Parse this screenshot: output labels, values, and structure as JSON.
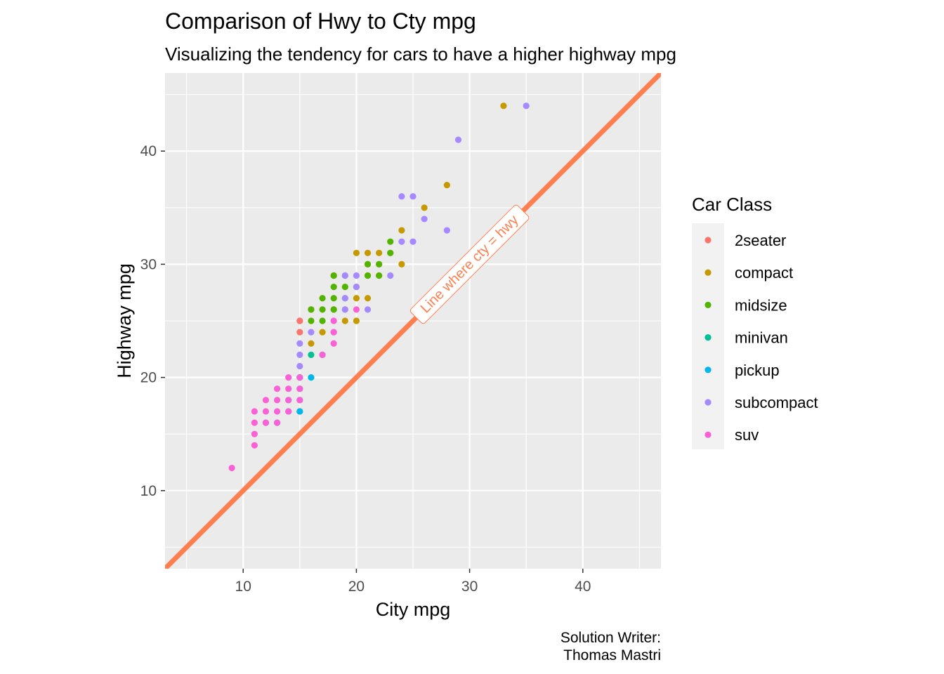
{
  "chart_data": {
    "type": "scatter",
    "title": "Comparison of Hwy to Cty mpg",
    "subtitle": "Visualizing the tendency for cars to have a higher highway mpg",
    "xlabel": "City mpg",
    "ylabel": "Highway mpg",
    "caption_lines": [
      "Solution Writer:",
      "Thomas Mastri"
    ],
    "xlim": [
      3.1,
      46.9
    ],
    "ylim": [
      3.1,
      46.9
    ],
    "x_ticks": [
      10,
      20,
      30,
      40
    ],
    "y_ticks": [
      10,
      20,
      30,
      40
    ],
    "grid": true,
    "legend": {
      "title": "Car Class",
      "position": "right"
    },
    "reference_line": {
      "label": "Line where cty = hwy",
      "slope": 1,
      "intercept": 0,
      "color": "#FF7F50",
      "label_at": [
        30,
        30
      ]
    },
    "series": [
      {
        "name": "2seater",
        "color": "#F8766D",
        "points": [
          [
            15,
            24
          ],
          [
            15,
            25
          ],
          [
            16,
            26
          ],
          [
            15,
            25
          ]
        ]
      },
      {
        "name": "compact",
        "color": "#C49A00",
        "points": [
          [
            18,
            29
          ],
          [
            21,
            29
          ],
          [
            20,
            31
          ],
          [
            21,
            30
          ],
          [
            18,
            26
          ],
          [
            16,
            23
          ],
          [
            17,
            24
          ],
          [
            19,
            25
          ],
          [
            19,
            26
          ],
          [
            20,
            27
          ],
          [
            21,
            27
          ],
          [
            20,
            28
          ],
          [
            21,
            31
          ],
          [
            22,
            31
          ],
          [
            22,
            29
          ],
          [
            23,
            31
          ],
          [
            24,
            30
          ],
          [
            24,
            33
          ],
          [
            26,
            35
          ],
          [
            28,
            37
          ],
          [
            33,
            44
          ],
          [
            20,
            25
          ],
          [
            22,
            30
          ]
        ]
      },
      {
        "name": "midsize",
        "color": "#53B400",
        "points": [
          [
            16,
            26
          ],
          [
            17,
            26
          ],
          [
            18,
            26
          ],
          [
            18,
            28
          ],
          [
            18,
            29
          ],
          [
            19,
            29
          ],
          [
            19,
            28
          ],
          [
            17,
            27
          ],
          [
            17,
            25
          ],
          [
            16,
            25
          ],
          [
            21,
            30
          ],
          [
            21,
            29
          ],
          [
            22,
            30
          ],
          [
            22,
            29
          ],
          [
            23,
            31
          ],
          [
            23,
            32
          ],
          [
            19,
            27
          ],
          [
            18,
            27
          ]
        ]
      },
      {
        "name": "minivan",
        "color": "#00C094",
        "points": [
          [
            16,
            22
          ],
          [
            17,
            22
          ],
          [
            15,
            20
          ]
        ]
      },
      {
        "name": "pickup",
        "color": "#00B6EB",
        "points": [
          [
            15,
            17
          ],
          [
            15,
            18
          ],
          [
            14,
            17
          ],
          [
            14,
            18
          ],
          [
            15,
            19
          ],
          [
            15,
            20
          ],
          [
            16,
            20
          ],
          [
            13,
            16
          ],
          [
            12,
            16
          ],
          [
            15,
            17
          ]
        ]
      },
      {
        "name": "subcompact",
        "color": "#A58AFF",
        "points": [
          [
            15,
            23
          ],
          [
            16,
            24
          ],
          [
            15,
            21
          ],
          [
            15,
            22
          ],
          [
            18,
            24
          ],
          [
            19,
            26
          ],
          [
            19,
            27
          ],
          [
            20,
            28
          ],
          [
            19,
            29
          ],
          [
            20,
            29
          ],
          [
            21,
            26
          ],
          [
            23,
            29
          ],
          [
            24,
            32
          ],
          [
            24,
            36
          ],
          [
            25,
            32
          ],
          [
            25,
            36
          ],
          [
            26,
            34
          ],
          [
            28,
            33
          ],
          [
            29,
            41
          ],
          [
            35,
            44
          ]
        ]
      },
      {
        "name": "suv",
        "color": "#FB61D7",
        "points": [
          [
            9,
            12
          ],
          [
            11,
            14
          ],
          [
            11,
            15
          ],
          [
            11,
            16
          ],
          [
            11,
            17
          ],
          [
            12,
            17
          ],
          [
            12,
            18
          ],
          [
            13,
            17
          ],
          [
            13,
            18
          ],
          [
            13,
            19
          ],
          [
            14,
            19
          ],
          [
            14,
            20
          ],
          [
            14,
            17
          ],
          [
            14,
            18
          ],
          [
            15,
            18
          ],
          [
            15,
            19
          ],
          [
            15,
            20
          ],
          [
            17,
            22
          ],
          [
            18,
            25
          ],
          [
            18,
            24
          ],
          [
            18,
            23
          ],
          [
            20,
            26
          ],
          [
            12,
            16
          ],
          [
            13,
            16
          ]
        ]
      }
    ]
  }
}
